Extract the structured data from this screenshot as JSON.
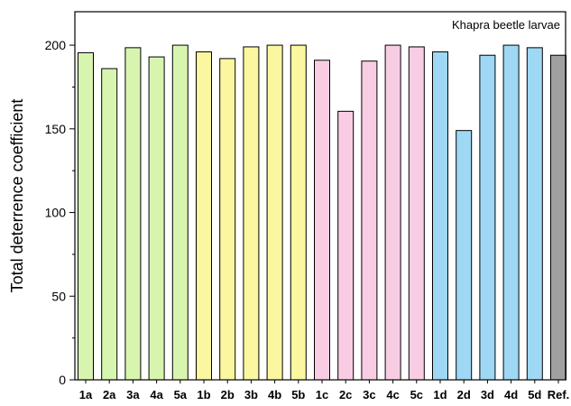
{
  "chart_data": {
    "type": "bar",
    "title": "",
    "xlabel": "",
    "ylabel": "Total deterrence coefficient",
    "annotation": "Khapra beetle larvae",
    "ylim": [
      0,
      220
    ],
    "yticks": [
      0,
      50,
      100,
      150,
      200
    ],
    "grid": false,
    "categories": [
      "1a",
      "2a",
      "3a",
      "4a",
      "5a",
      "1b",
      "2b",
      "3b",
      "4b",
      "5b",
      "1c",
      "2c",
      "3c",
      "4c",
      "5c",
      "1d",
      "2d",
      "3d",
      "4d",
      "5d",
      "Ref."
    ],
    "values": [
      195.5,
      186,
      198.5,
      193,
      200,
      196,
      192,
      199,
      200,
      200,
      191,
      160.5,
      190.5,
      200,
      199,
      196,
      149,
      194,
      200,
      198.5,
      194
    ],
    "colors": [
      "#d8f5b0",
      "#d8f5b0",
      "#d8f5b0",
      "#d8f5b0",
      "#d8f5b0",
      "#fbf7a0",
      "#fbf7a0",
      "#fbf7a0",
      "#fbf7a0",
      "#fbf7a0",
      "#f8cde3",
      "#f8cde3",
      "#f8cde3",
      "#f8cde3",
      "#f8cde3",
      "#9ed8f5",
      "#9ed8f5",
      "#9ed8f5",
      "#9ed8f5",
      "#9ed8f5",
      "#a0a0a0"
    ]
  }
}
